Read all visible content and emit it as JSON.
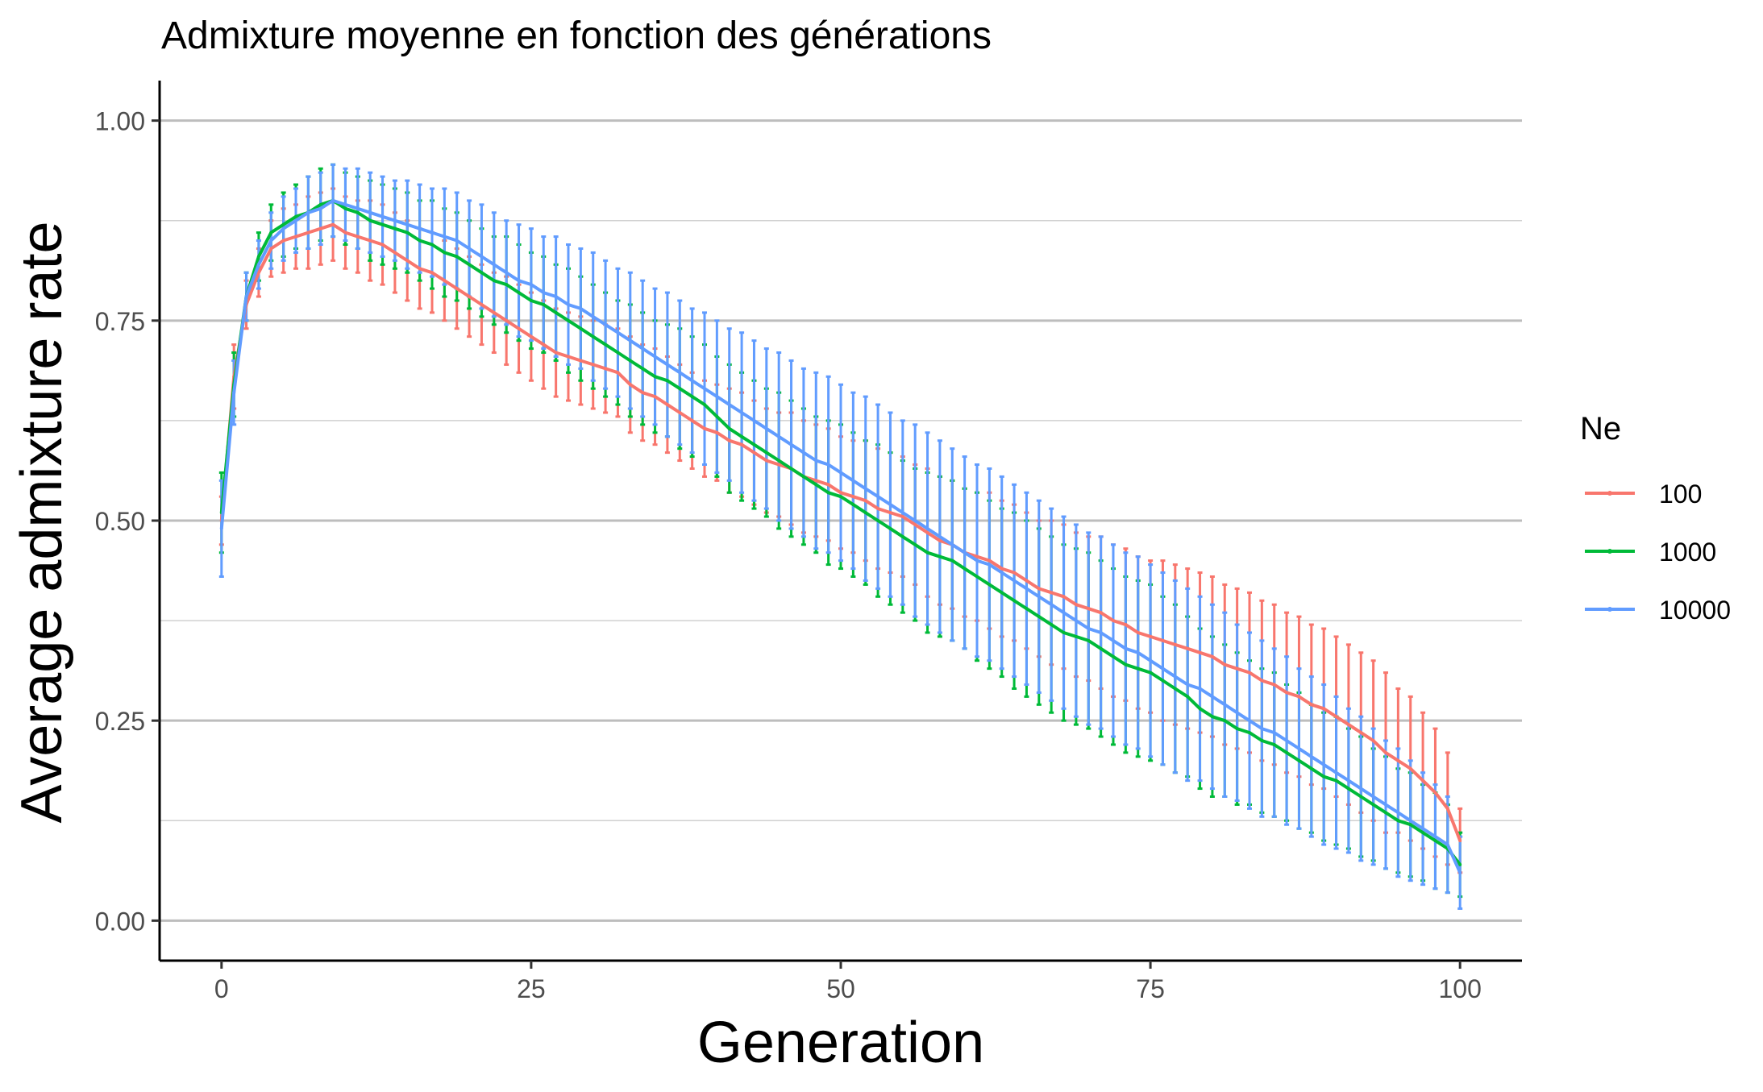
{
  "chart_data": {
    "type": "line",
    "title": "Admixture moyenne en fonction des générations",
    "xlabel": "Generation",
    "ylabel": "Average admixture rate",
    "xlim": [
      -5,
      105
    ],
    "ylim": [
      -0.05,
      1.05
    ],
    "x_ticks": [
      0,
      25,
      50,
      75,
      100
    ],
    "x_tick_labels": [
      "0",
      "25",
      "50",
      "75",
      "100"
    ],
    "y_ticks": [
      0,
      0.25,
      0.5,
      0.75,
      1.0
    ],
    "y_tick_labels": [
      "0.00",
      "0.25",
      "0.50",
      "0.75",
      "1.00"
    ],
    "grid": "horizontal major and minor",
    "error_bars": true,
    "legend": {
      "title": "Ne",
      "position": "right",
      "entries": [
        "100",
        "1000",
        "10000"
      ]
    },
    "x": [
      0,
      1,
      2,
      3,
      4,
      5,
      6,
      7,
      8,
      9,
      10,
      11,
      12,
      13,
      14,
      15,
      16,
      17,
      18,
      19,
      20,
      21,
      22,
      23,
      24,
      25,
      26,
      27,
      28,
      29,
      30,
      31,
      32,
      33,
      34,
      35,
      36,
      37,
      38,
      39,
      40,
      41,
      42,
      43,
      44,
      45,
      46,
      47,
      48,
      49,
      50,
      51,
      52,
      53,
      54,
      55,
      56,
      57,
      58,
      59,
      60,
      61,
      62,
      63,
      64,
      65,
      66,
      67,
      68,
      69,
      70,
      71,
      72,
      73,
      74,
      75,
      76,
      77,
      78,
      79,
      80,
      81,
      82,
      83,
      84,
      85,
      86,
      87,
      88,
      89,
      90,
      91,
      92,
      93,
      94,
      95,
      96,
      97,
      98,
      99,
      100
    ],
    "series": [
      {
        "name": "100",
        "color": "#F8766D",
        "values": [
          0.5,
          0.68,
          0.77,
          0.81,
          0.84,
          0.85,
          0.855,
          0.86,
          0.865,
          0.87,
          0.86,
          0.855,
          0.85,
          0.845,
          0.835,
          0.825,
          0.815,
          0.81,
          0.8,
          0.79,
          0.78,
          0.77,
          0.76,
          0.75,
          0.74,
          0.73,
          0.72,
          0.71,
          0.705,
          0.7,
          0.695,
          0.69,
          0.685,
          0.67,
          0.66,
          0.655,
          0.645,
          0.635,
          0.625,
          0.615,
          0.61,
          0.6,
          0.595,
          0.585,
          0.575,
          0.57,
          0.565,
          0.555,
          0.55,
          0.545,
          0.535,
          0.53,
          0.525,
          0.515,
          0.51,
          0.505,
          0.495,
          0.485,
          0.475,
          0.47,
          0.46,
          0.455,
          0.45,
          0.44,
          0.435,
          0.425,
          0.415,
          0.41,
          0.405,
          0.395,
          0.39,
          0.385,
          0.375,
          0.37,
          0.36,
          0.355,
          0.35,
          0.345,
          0.34,
          0.335,
          0.33,
          0.32,
          0.315,
          0.31,
          0.3,
          0.295,
          0.285,
          0.28,
          0.27,
          0.265,
          0.255,
          0.245,
          0.235,
          0.225,
          0.21,
          0.2,
          0.19,
          0.175,
          0.16,
          0.14,
          0.1
        ],
        "error": [
          0.03,
          0.04,
          0.03,
          0.03,
          0.035,
          0.04,
          0.04,
          0.045,
          0.045,
          0.045,
          0.045,
          0.045,
          0.05,
          0.05,
          0.05,
          0.05,
          0.05,
          0.05,
          0.05,
          0.05,
          0.05,
          0.05,
          0.05,
          0.055,
          0.055,
          0.055,
          0.055,
          0.055,
          0.055,
          0.055,
          0.055,
          0.055,
          0.055,
          0.06,
          0.06,
          0.06,
          0.06,
          0.06,
          0.06,
          0.06,
          0.06,
          0.065,
          0.065,
          0.065,
          0.065,
          0.065,
          0.07,
          0.07,
          0.07,
          0.07,
          0.07,
          0.07,
          0.075,
          0.075,
          0.075,
          0.075,
          0.075,
          0.08,
          0.08,
          0.08,
          0.08,
          0.08,
          0.085,
          0.085,
          0.085,
          0.085,
          0.085,
          0.09,
          0.09,
          0.09,
          0.09,
          0.095,
          0.095,
          0.095,
          0.095,
          0.095,
          0.1,
          0.1,
          0.1,
          0.1,
          0.1,
          0.1,
          0.1,
          0.1,
          0.1,
          0.1,
          0.1,
          0.1,
          0.1,
          0.1,
          0.1,
          0.1,
          0.1,
          0.1,
          0.1,
          0.09,
          0.09,
          0.085,
          0.08,
          0.07,
          0.04
        ]
      },
      {
        "name": "1000",
        "color": "#00BA38",
        "values": [
          0.51,
          0.67,
          0.78,
          0.83,
          0.86,
          0.87,
          0.88,
          0.885,
          0.895,
          0.9,
          0.89,
          0.885,
          0.875,
          0.87,
          0.865,
          0.86,
          0.85,
          0.845,
          0.835,
          0.83,
          0.82,
          0.81,
          0.8,
          0.795,
          0.785,
          0.775,
          0.77,
          0.76,
          0.75,
          0.74,
          0.73,
          0.72,
          0.71,
          0.7,
          0.69,
          0.68,
          0.675,
          0.665,
          0.655,
          0.645,
          0.63,
          0.615,
          0.605,
          0.595,
          0.585,
          0.575,
          0.565,
          0.555,
          0.545,
          0.535,
          0.53,
          0.52,
          0.51,
          0.5,
          0.49,
          0.48,
          0.47,
          0.46,
          0.455,
          0.45,
          0.44,
          0.43,
          0.42,
          0.41,
          0.4,
          0.39,
          0.38,
          0.37,
          0.36,
          0.355,
          0.35,
          0.34,
          0.33,
          0.32,
          0.315,
          0.31,
          0.3,
          0.29,
          0.28,
          0.265,
          0.255,
          0.25,
          0.24,
          0.235,
          0.225,
          0.22,
          0.21,
          0.2,
          0.19,
          0.18,
          0.175,
          0.165,
          0.155,
          0.145,
          0.135,
          0.125,
          0.12,
          0.11,
          0.1,
          0.09,
          0.07
        ],
        "error": [
          0.05,
          0.04,
          0.03,
          0.03,
          0.035,
          0.04,
          0.04,
          0.045,
          0.045,
          0.045,
          0.045,
          0.045,
          0.05,
          0.05,
          0.05,
          0.05,
          0.05,
          0.055,
          0.055,
          0.055,
          0.055,
          0.055,
          0.055,
          0.06,
          0.06,
          0.06,
          0.06,
          0.06,
          0.065,
          0.065,
          0.065,
          0.065,
          0.065,
          0.07,
          0.07,
          0.07,
          0.07,
          0.075,
          0.075,
          0.075,
          0.075,
          0.08,
          0.08,
          0.08,
          0.08,
          0.085,
          0.085,
          0.085,
          0.085,
          0.09,
          0.09,
          0.09,
          0.09,
          0.095,
          0.095,
          0.095,
          0.095,
          0.1,
          0.1,
          0.1,
          0.1,
          0.105,
          0.105,
          0.105,
          0.11,
          0.11,
          0.11,
          0.11,
          0.11,
          0.11,
          0.11,
          0.11,
          0.11,
          0.11,
          0.11,
          0.11,
          0.105,
          0.105,
          0.1,
          0.1,
          0.1,
          0.095,
          0.095,
          0.09,
          0.09,
          0.09,
          0.085,
          0.085,
          0.08,
          0.08,
          0.08,
          0.075,
          0.075,
          0.07,
          0.07,
          0.065,
          0.065,
          0.06,
          0.06,
          0.055,
          0.04
        ]
      },
      {
        "name": "10000",
        "color": "#619CFF",
        "values": [
          0.49,
          0.66,
          0.78,
          0.82,
          0.85,
          0.865,
          0.875,
          0.885,
          0.89,
          0.9,
          0.895,
          0.89,
          0.885,
          0.88,
          0.875,
          0.87,
          0.865,
          0.86,
          0.855,
          0.85,
          0.84,
          0.83,
          0.82,
          0.81,
          0.8,
          0.795,
          0.785,
          0.78,
          0.77,
          0.765,
          0.755,
          0.745,
          0.735,
          0.725,
          0.715,
          0.705,
          0.695,
          0.685,
          0.675,
          0.665,
          0.655,
          0.645,
          0.635,
          0.625,
          0.615,
          0.605,
          0.595,
          0.585,
          0.575,
          0.57,
          0.56,
          0.55,
          0.54,
          0.53,
          0.52,
          0.51,
          0.5,
          0.49,
          0.48,
          0.47,
          0.46,
          0.45,
          0.445,
          0.435,
          0.425,
          0.415,
          0.405,
          0.395,
          0.385,
          0.375,
          0.365,
          0.36,
          0.35,
          0.34,
          0.335,
          0.325,
          0.315,
          0.305,
          0.295,
          0.29,
          0.28,
          0.27,
          0.26,
          0.25,
          0.24,
          0.235,
          0.225,
          0.215,
          0.205,
          0.195,
          0.185,
          0.175,
          0.165,
          0.155,
          0.145,
          0.135,
          0.125,
          0.115,
          0.105,
          0.095,
          0.06
        ],
        "error": [
          0.06,
          0.04,
          0.03,
          0.03,
          0.035,
          0.04,
          0.04,
          0.045,
          0.045,
          0.045,
          0.045,
          0.05,
          0.05,
          0.05,
          0.05,
          0.055,
          0.055,
          0.055,
          0.06,
          0.06,
          0.06,
          0.065,
          0.065,
          0.065,
          0.07,
          0.07,
          0.07,
          0.075,
          0.075,
          0.075,
          0.08,
          0.08,
          0.08,
          0.085,
          0.085,
          0.085,
          0.09,
          0.09,
          0.09,
          0.095,
          0.095,
          0.095,
          0.1,
          0.1,
          0.1,
          0.105,
          0.105,
          0.105,
          0.11,
          0.11,
          0.11,
          0.11,
          0.115,
          0.115,
          0.115,
          0.115,
          0.12,
          0.12,
          0.12,
          0.12,
          0.12,
          0.12,
          0.12,
          0.12,
          0.12,
          0.12,
          0.12,
          0.12,
          0.12,
          0.12,
          0.12,
          0.12,
          0.12,
          0.12,
          0.12,
          0.12,
          0.12,
          0.12,
          0.12,
          0.115,
          0.115,
          0.115,
          0.11,
          0.11,
          0.11,
          0.105,
          0.105,
          0.1,
          0.1,
          0.1,
          0.095,
          0.09,
          0.09,
          0.085,
          0.08,
          0.08,
          0.075,
          0.07,
          0.065,
          0.06,
          0.045
        ]
      }
    ]
  }
}
